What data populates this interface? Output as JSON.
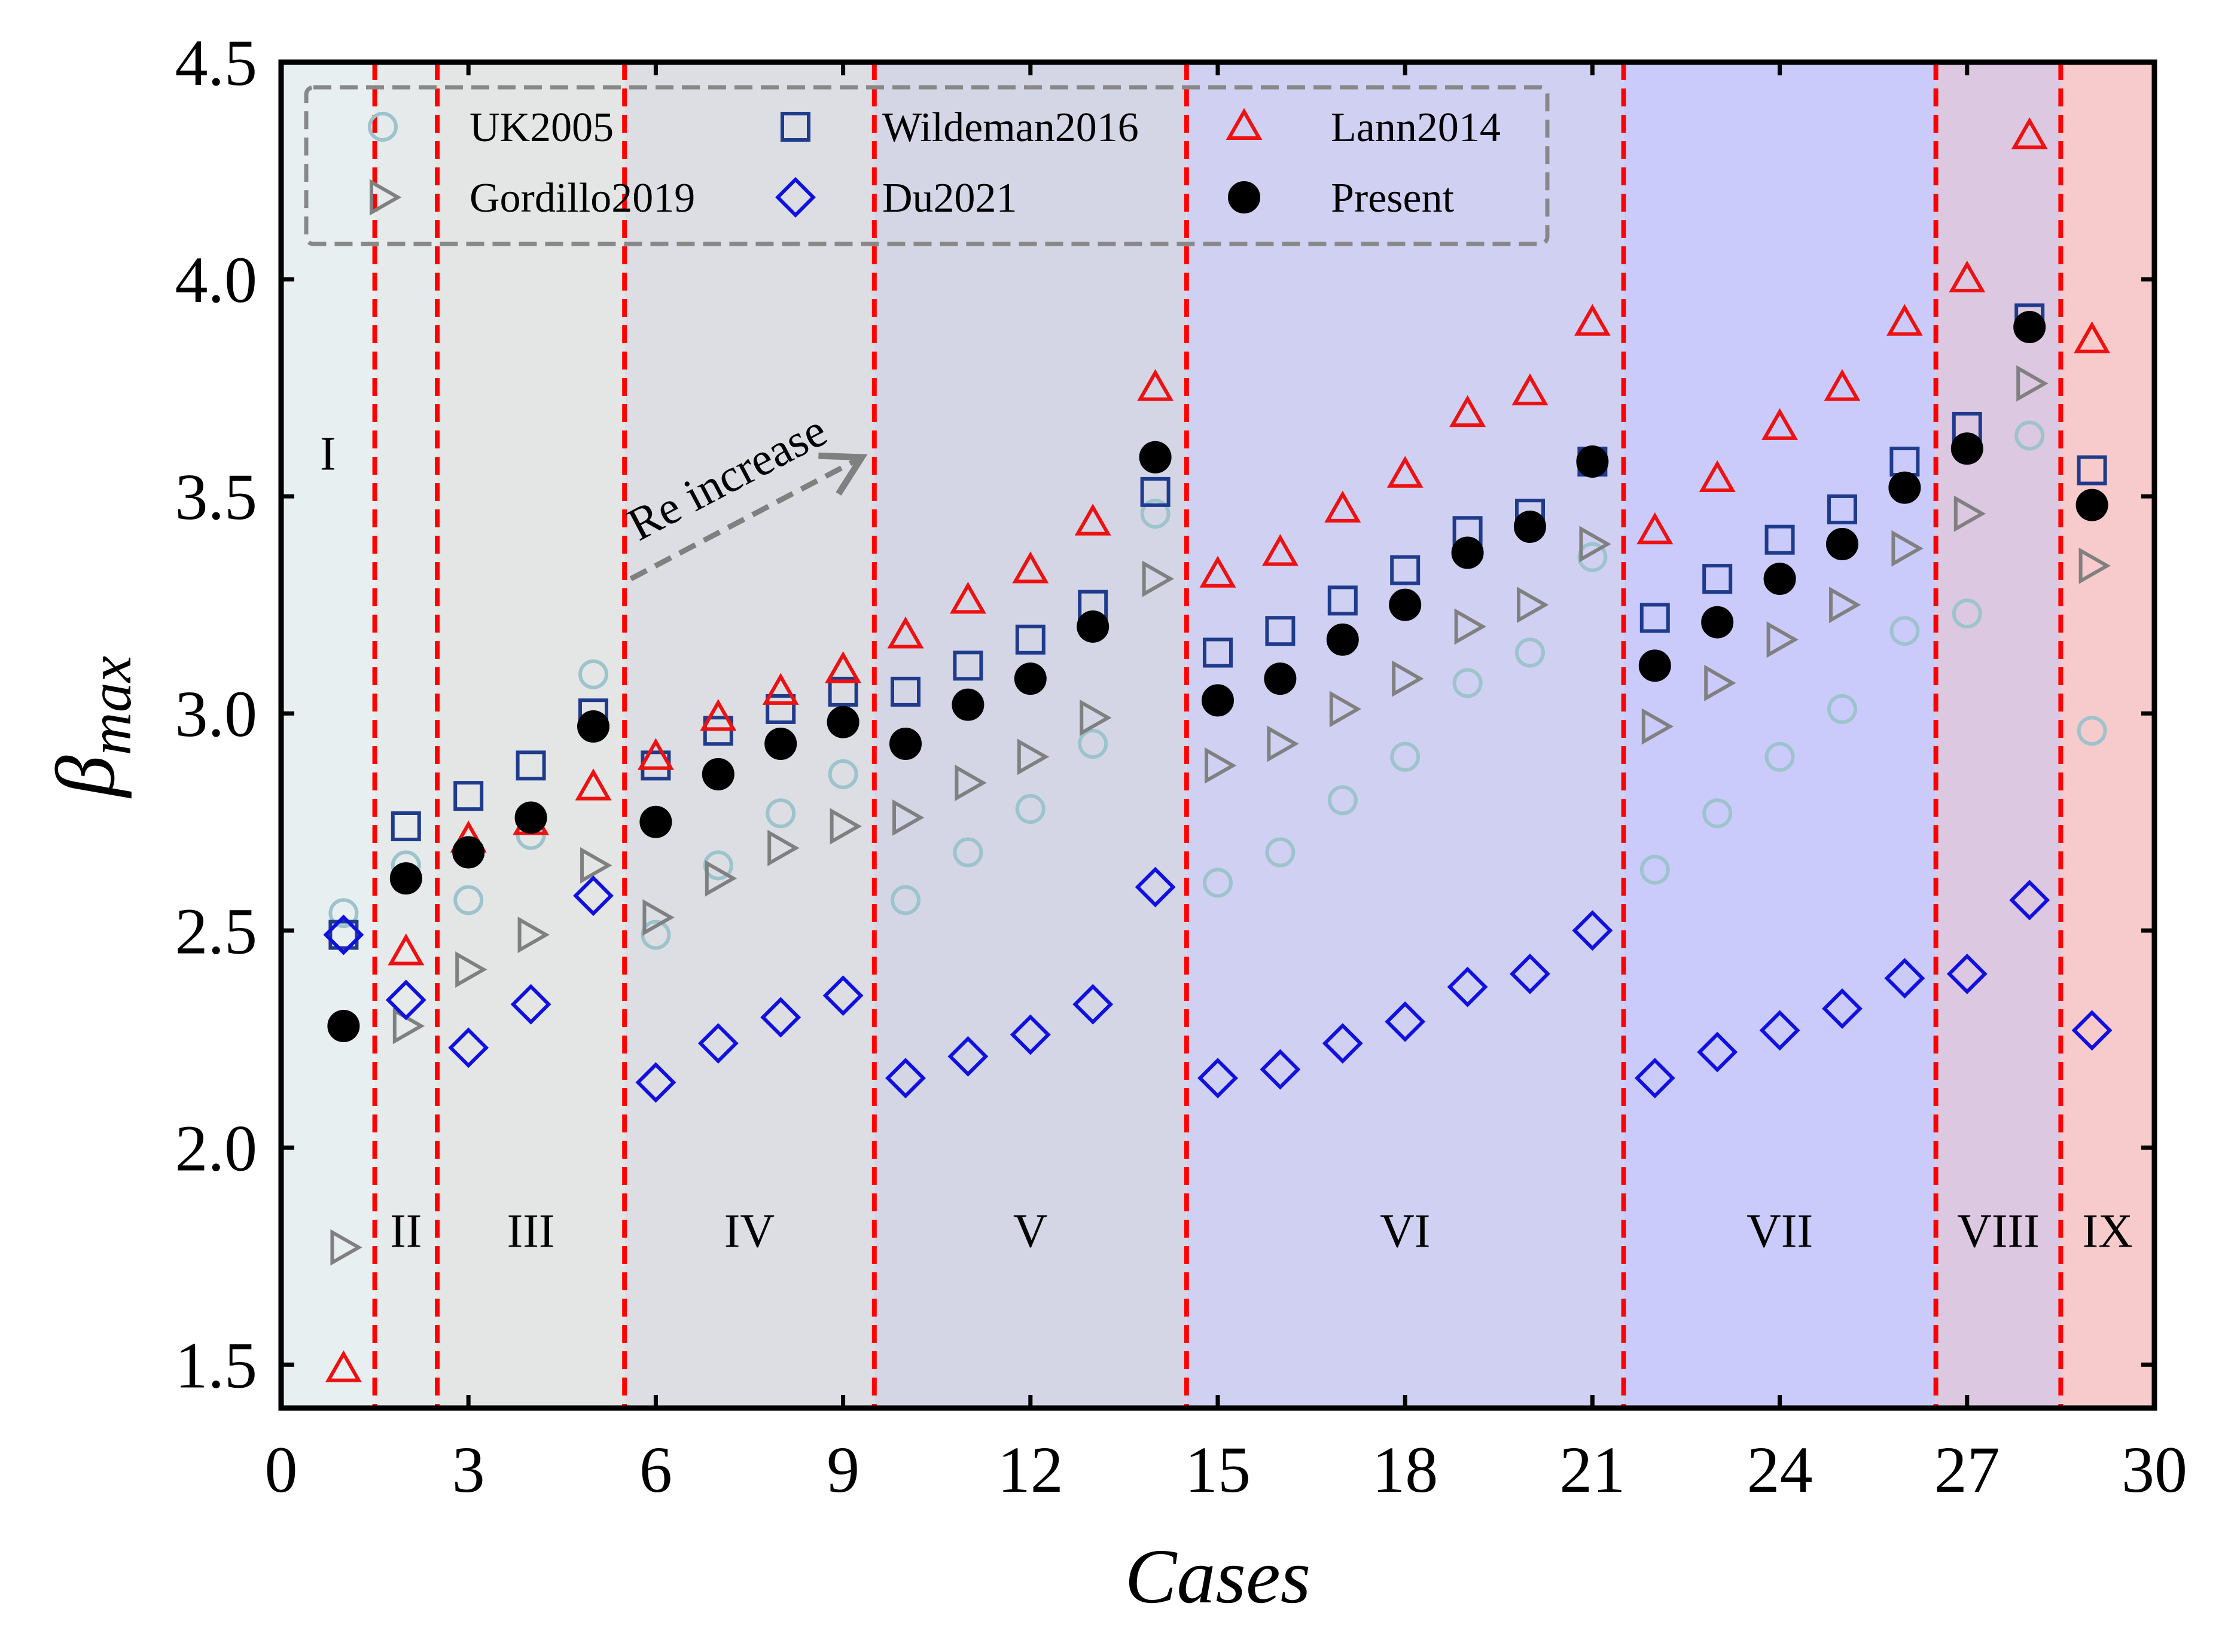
{
  "chart_data": {
    "type": "scatter",
    "xlabel": "Cases",
    "ylabel_main": "β",
    "ylabel_sub": "max",
    "xlim": [
      0,
      30
    ],
    "ylim": [
      1.4,
      4.5
    ],
    "xticks": [
      0,
      3,
      6,
      9,
      12,
      15,
      18,
      21,
      24,
      27,
      30
    ],
    "yticks": [
      1.5,
      2.0,
      2.5,
      3.0,
      3.5,
      4.0,
      4.5
    ],
    "ytick_labels": [
      "1.5",
      "2.0",
      "2.5",
      "3.0",
      "3.5",
      "4.0",
      "4.5"
    ],
    "x": [
      1,
      2,
      3,
      4,
      5,
      6,
      7,
      8,
      9,
      10,
      11,
      12,
      13,
      14,
      15,
      16,
      17,
      18,
      19,
      20,
      21,
      22,
      23,
      24,
      25,
      26,
      27,
      28,
      29
    ],
    "series": [
      {
        "name": "UK2005",
        "marker": "circle",
        "color": "#9dc3cc",
        "filled": false,
        "values": [
          2.54,
          2.65,
          2.57,
          2.72,
          3.09,
          2.49,
          2.65,
          2.77,
          2.86,
          2.57,
          2.68,
          2.78,
          2.93,
          3.46,
          2.61,
          2.68,
          2.8,
          2.9,
          3.07,
          3.14,
          3.36,
          2.64,
          2.77,
          2.9,
          3.01,
          3.19,
          3.23,
          3.64,
          2.96
        ]
      },
      {
        "name": "Wildeman2016",
        "marker": "square",
        "color": "#1f3b8c",
        "filled": false,
        "values": [
          2.49,
          2.74,
          2.81,
          2.88,
          3.0,
          2.88,
          2.96,
          3.01,
          3.05,
          3.05,
          3.11,
          3.17,
          3.25,
          3.51,
          3.14,
          3.19,
          3.26,
          3.33,
          3.42,
          3.46,
          3.58,
          3.22,
          3.31,
          3.4,
          3.47,
          3.58,
          3.66,
          3.91,
          3.56
        ]
      },
      {
        "name": "Lann2014",
        "marker": "triangle-up",
        "color": "#ee1111",
        "filled": false,
        "values": [
          1.49,
          2.45,
          2.71,
          2.75,
          2.83,
          2.9,
          2.99,
          3.05,
          3.1,
          3.18,
          3.26,
          3.33,
          3.44,
          3.75,
          3.32,
          3.37,
          3.47,
          3.55,
          3.69,
          3.74,
          3.9,
          3.42,
          3.54,
          3.66,
          3.75,
          3.9,
          4.0,
          4.33,
          3.86
        ]
      },
      {
        "name": "Gordillo2019",
        "marker": "triangle-right",
        "color": "#808080",
        "filled": false,
        "values": [
          1.77,
          2.28,
          2.41,
          2.49,
          2.65,
          2.53,
          2.62,
          2.69,
          2.74,
          2.76,
          2.84,
          2.9,
          2.99,
          3.31,
          2.88,
          2.93,
          3.01,
          3.08,
          3.2,
          3.25,
          3.39,
          2.97,
          3.07,
          3.17,
          3.25,
          3.38,
          3.46,
          3.76,
          3.34
        ]
      },
      {
        "name": "Du2021",
        "marker": "diamond",
        "color": "#1010e0",
        "filled": false,
        "values": [
          2.49,
          2.34,
          2.23,
          2.33,
          2.58,
          2.15,
          2.24,
          2.3,
          2.35,
          2.16,
          2.21,
          2.26,
          2.33,
          2.6,
          2.16,
          2.18,
          2.24,
          2.29,
          2.37,
          2.4,
          2.5,
          2.16,
          2.22,
          2.27,
          2.32,
          2.39,
          2.4,
          2.57,
          2.27
        ]
      },
      {
        "name": "Present",
        "marker": "circle",
        "color": "#000000",
        "filled": true,
        "values": [
          2.28,
          2.62,
          2.68,
          2.76,
          2.97,
          2.75,
          2.86,
          2.93,
          2.98,
          2.93,
          3.02,
          3.08,
          3.2,
          3.59,
          3.03,
          3.08,
          3.17,
          3.25,
          3.37,
          3.43,
          3.58,
          3.11,
          3.21,
          3.31,
          3.39,
          3.52,
          3.61,
          3.89,
          3.48
        ]
      }
    ],
    "legend": {
      "placement": "top-left",
      "rows": [
        [
          "UK2005",
          "Wildeman2016",
          "Lann2014"
        ],
        [
          "Gordillo2019",
          "Du2021",
          "Present"
        ]
      ]
    },
    "regions": [
      {
        "label": "I",
        "x_start": 0,
        "x_end": 1.5,
        "color": "#e8eff0"
      },
      {
        "label": "II",
        "x_start": 1.5,
        "x_end": 2.5,
        "color": "#e6eaea"
      },
      {
        "label": "III",
        "x_start": 2.5,
        "x_end": 5.5,
        "color": "#e4e6e6"
      },
      {
        "label": "IV",
        "x_start": 5.5,
        "x_end": 9.5,
        "color": "#dcdee3"
      },
      {
        "label": "V",
        "x_start": 9.5,
        "x_end": 14.5,
        "color": "#d4d6e6"
      },
      {
        "label": "VI",
        "x_start": 14.5,
        "x_end": 21.5,
        "color": "#d0d0f2"
      },
      {
        "label": "VII",
        "x_start": 21.5,
        "x_end": 26.5,
        "color": "#cbcbfb"
      },
      {
        "label": "VIII",
        "x_start": 26.5,
        "x_end": 28.5,
        "color": "#dcc8e0"
      },
      {
        "label": "IX",
        "x_start": 28.5,
        "x_end": 30,
        "color": "#f7cbcb"
      }
    ],
    "region_label_positions": [
      {
        "label": "I",
        "x": 0.75,
        "y": 3.6
      },
      {
        "label": "II",
        "x": 2.0,
        "y": 1.81
      },
      {
        "label": "III",
        "x": 4.0,
        "y": 1.81
      },
      {
        "label": "IV",
        "x": 7.5,
        "y": 1.81
      },
      {
        "label": "V",
        "x": 12.0,
        "y": 1.81
      },
      {
        "label": "VI",
        "x": 18.0,
        "y": 1.81
      },
      {
        "label": "VII",
        "x": 24.0,
        "y": 1.81
      },
      {
        "label": "VIII",
        "x": 27.5,
        "y": 1.81
      },
      {
        "label": "IX",
        "x": 29.25,
        "y": 1.81
      }
    ],
    "divider_x": [
      1.5,
      2.5,
      5.5,
      9.5,
      14.5,
      21.5,
      26.5,
      28.5
    ],
    "divider_color": "#ff0000",
    "annotation": {
      "text": "Re increase",
      "from": [
        5.6,
        3.31
      ],
      "to": [
        9.3,
        3.59
      ],
      "color": "#808080"
    }
  }
}
